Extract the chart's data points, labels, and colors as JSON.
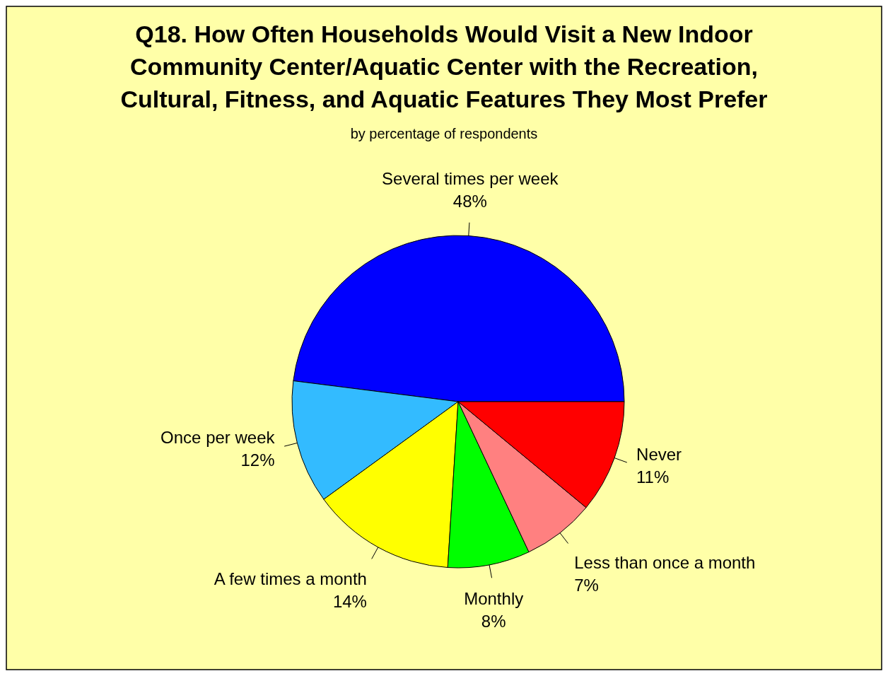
{
  "chart_data": {
    "type": "pie",
    "title": "Q18.  How Often Households Would Visit a New Indoor Community Center/Aquatic Center with the Recreation, Cultural, Fitness, and Aquatic Features They Most Prefer",
    "subtitle": "by percentage of respondents",
    "categories": [
      "Several times per week",
      "Once per week",
      "A few times a month",
      "Monthly",
      "Less than once a month",
      "Never"
    ],
    "values": [
      48,
      12,
      14,
      8,
      7,
      11
    ],
    "value_labels": [
      "48%",
      "12%",
      "14%",
      "8%",
      "7%",
      "11%"
    ],
    "colors": [
      "#0000ff",
      "#33bbff",
      "#ffff00",
      "#00ff00",
      "#ff8080",
      "#ff0000"
    ],
    "legend": false
  }
}
